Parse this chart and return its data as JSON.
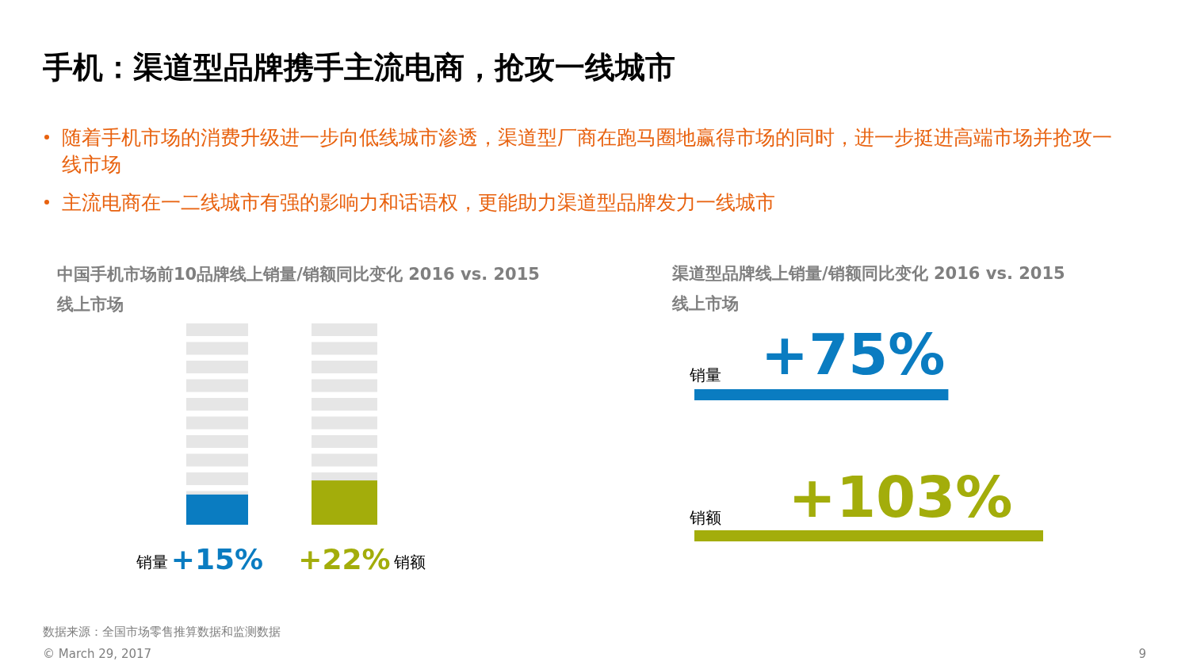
{
  "chart_data": [
    {
      "type": "bar",
      "title": "中国手机市场前10品牌线上销量/销额同比变化  2016 vs. 2015",
      "subtitle": "线上市场",
      "categories": [
        "销量",
        "销额"
      ],
      "values": [
        15,
        22
      ],
      "colors": [
        "#0a7cc1",
        "#a3ad0b"
      ],
      "value_labels": [
        "+15%",
        "+22%"
      ],
      "ylim": [
        0,
        100
      ],
      "tick_labels": false,
      "annotations": [
        "手机：渠道型品牌携手主流电商，抢攻一线城市",
        "随着手机市场的消费升级进一步向低线城市渗透，渠道型厂商在跑马圈地赢得市场的同时，进一步挺进高端市场并抢攻一线市场",
        "主流电商在一二线城市有强的影响力和话语权，更能助力渠道型品牌发力一线城市",
        "数据来源：全国市场零售推算数据和监测数据",
        "© March 29, 2017",
        "9"
      ]
    },
    {
      "type": "bar",
      "orientation": "horizontal",
      "title": "渠道型品牌线上销量/销额同比变化  2016 vs. 2015",
      "subtitle": "线上市场",
      "categories": [
        "销量",
        "销额"
      ],
      "values": [
        75,
        103
      ],
      "colors": [
        "#0a7cc1",
        "#a3ad0b"
      ],
      "value_labels": [
        "+75%",
        "+103%"
      ],
      "xlim": [
        0,
        103
      ],
      "tick_labels": false
    }
  ]
}
